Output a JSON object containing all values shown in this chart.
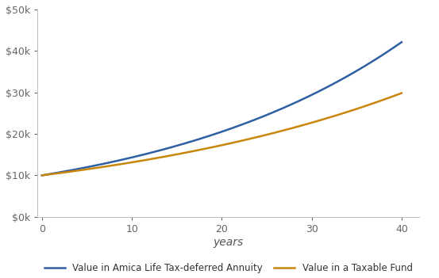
{
  "title": "",
  "xlabel": "years",
  "ylabel": "",
  "xlim": [
    -0.5,
    42
  ],
  "ylim": [
    0,
    50000
  ],
  "xticks": [
    0,
    10,
    20,
    30,
    40
  ],
  "yticks": [
    0,
    10000,
    20000,
    30000,
    40000,
    50000
  ],
  "line1_label": "Value in Amica Life Tax-deferred Annuity",
  "line1_color": "#2E5FA3",
  "line2_label": "Value in a Taxable Fund",
  "line2_color": "#C8860A",
  "initial_value": 10000,
  "annuity_rate": 0.0366,
  "taxable_rate": 0.0277,
  "years": 40,
  "background_color": "#FFFFFF",
  "legend_fontsize": 8.5,
  "axis_label_fontsize": 10,
  "tick_fontsize": 9,
  "line_width": 1.8
}
